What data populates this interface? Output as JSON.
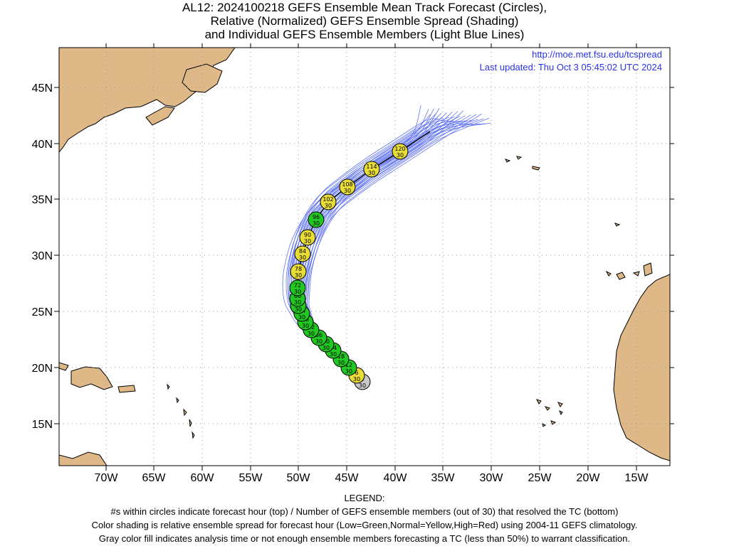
{
  "title": {
    "line1": "AL12: 2024100218 GEFS Ensemble Mean Track Forecast (Circles),",
    "line2": "Relative (Normalized) GEFS Ensemble Spread (Shading)",
    "line3": "and Individual GEFS Ensemble Members (Light Blue Lines)"
  },
  "info": {
    "url": "http://moe.met.fsu.edu/tcspread",
    "updated": "Last updated: Thu Oct 3 05:45:02 UTC 2024"
  },
  "axes": {
    "lon_labels": [
      "70W",
      "65W",
      "60W",
      "55W",
      "50W",
      "45W",
      "40W",
      "35W",
      "30W",
      "25W",
      "20W",
      "15W"
    ],
    "lat_labels": [
      "45N",
      "40N",
      "35N",
      "30N",
      "25N",
      "20N",
      "15N"
    ]
  },
  "colors": {
    "land": "#deb887",
    "green": "#22c822",
    "yellow": "#e8dc37",
    "gray": "#c8c8c8",
    "member_line": "#5b6ff0"
  },
  "forecast_points": [
    {
      "hour": "0",
      "members": "30",
      "status": "gray"
    },
    {
      "hour": "6",
      "members": "30",
      "status": "yellow"
    },
    {
      "hour": "12",
      "members": "30",
      "status": "green"
    },
    {
      "hour": "18",
      "members": "30",
      "status": "green"
    },
    {
      "hour": "24",
      "members": "30",
      "status": "green"
    },
    {
      "hour": "30",
      "members": "30",
      "status": "green"
    },
    {
      "hour": "36",
      "members": "30",
      "status": "green"
    },
    {
      "hour": "42",
      "members": "30",
      "status": "green"
    },
    {
      "hour": "48",
      "members": "30",
      "status": "green"
    },
    {
      "hour": "54",
      "members": "30",
      "status": "green"
    },
    {
      "hour": "60",
      "members": "30",
      "status": "green"
    },
    {
      "hour": "66",
      "members": "30",
      "status": "green"
    },
    {
      "hour": "72",
      "members": "30",
      "status": "green"
    },
    {
      "hour": "78",
      "members": "30",
      "status": "yellow"
    },
    {
      "hour": "84",
      "members": "30",
      "status": "yellow"
    },
    {
      "hour": "90",
      "members": "30",
      "status": "yellow"
    },
    {
      "hour": "96",
      "members": "30",
      "status": "green"
    },
    {
      "hour": "102",
      "members": "30",
      "status": "yellow"
    },
    {
      "hour": "108",
      "members": "30",
      "status": "yellow"
    },
    {
      "hour": "114",
      "members": "30",
      "status": "yellow"
    },
    {
      "hour": "120",
      "members": "30",
      "status": "yellow"
    }
  ],
  "legend": {
    "heading": "LEGEND:",
    "line1": "#s within circles indicate forecast hour (top) / Number of GEFS ensemble members (out of 30) that resolved the TC (bottom)",
    "line2": "Color shading is relative ensemble spread for forecast hour (Low=Green,Normal=Yellow,High=Red) using 2004-11 GEFS climatology.",
    "line3": "Gray color fill indicates analysis time or not enough ensemble members forecasting a TC (less than 50%) to warrant classification."
  }
}
